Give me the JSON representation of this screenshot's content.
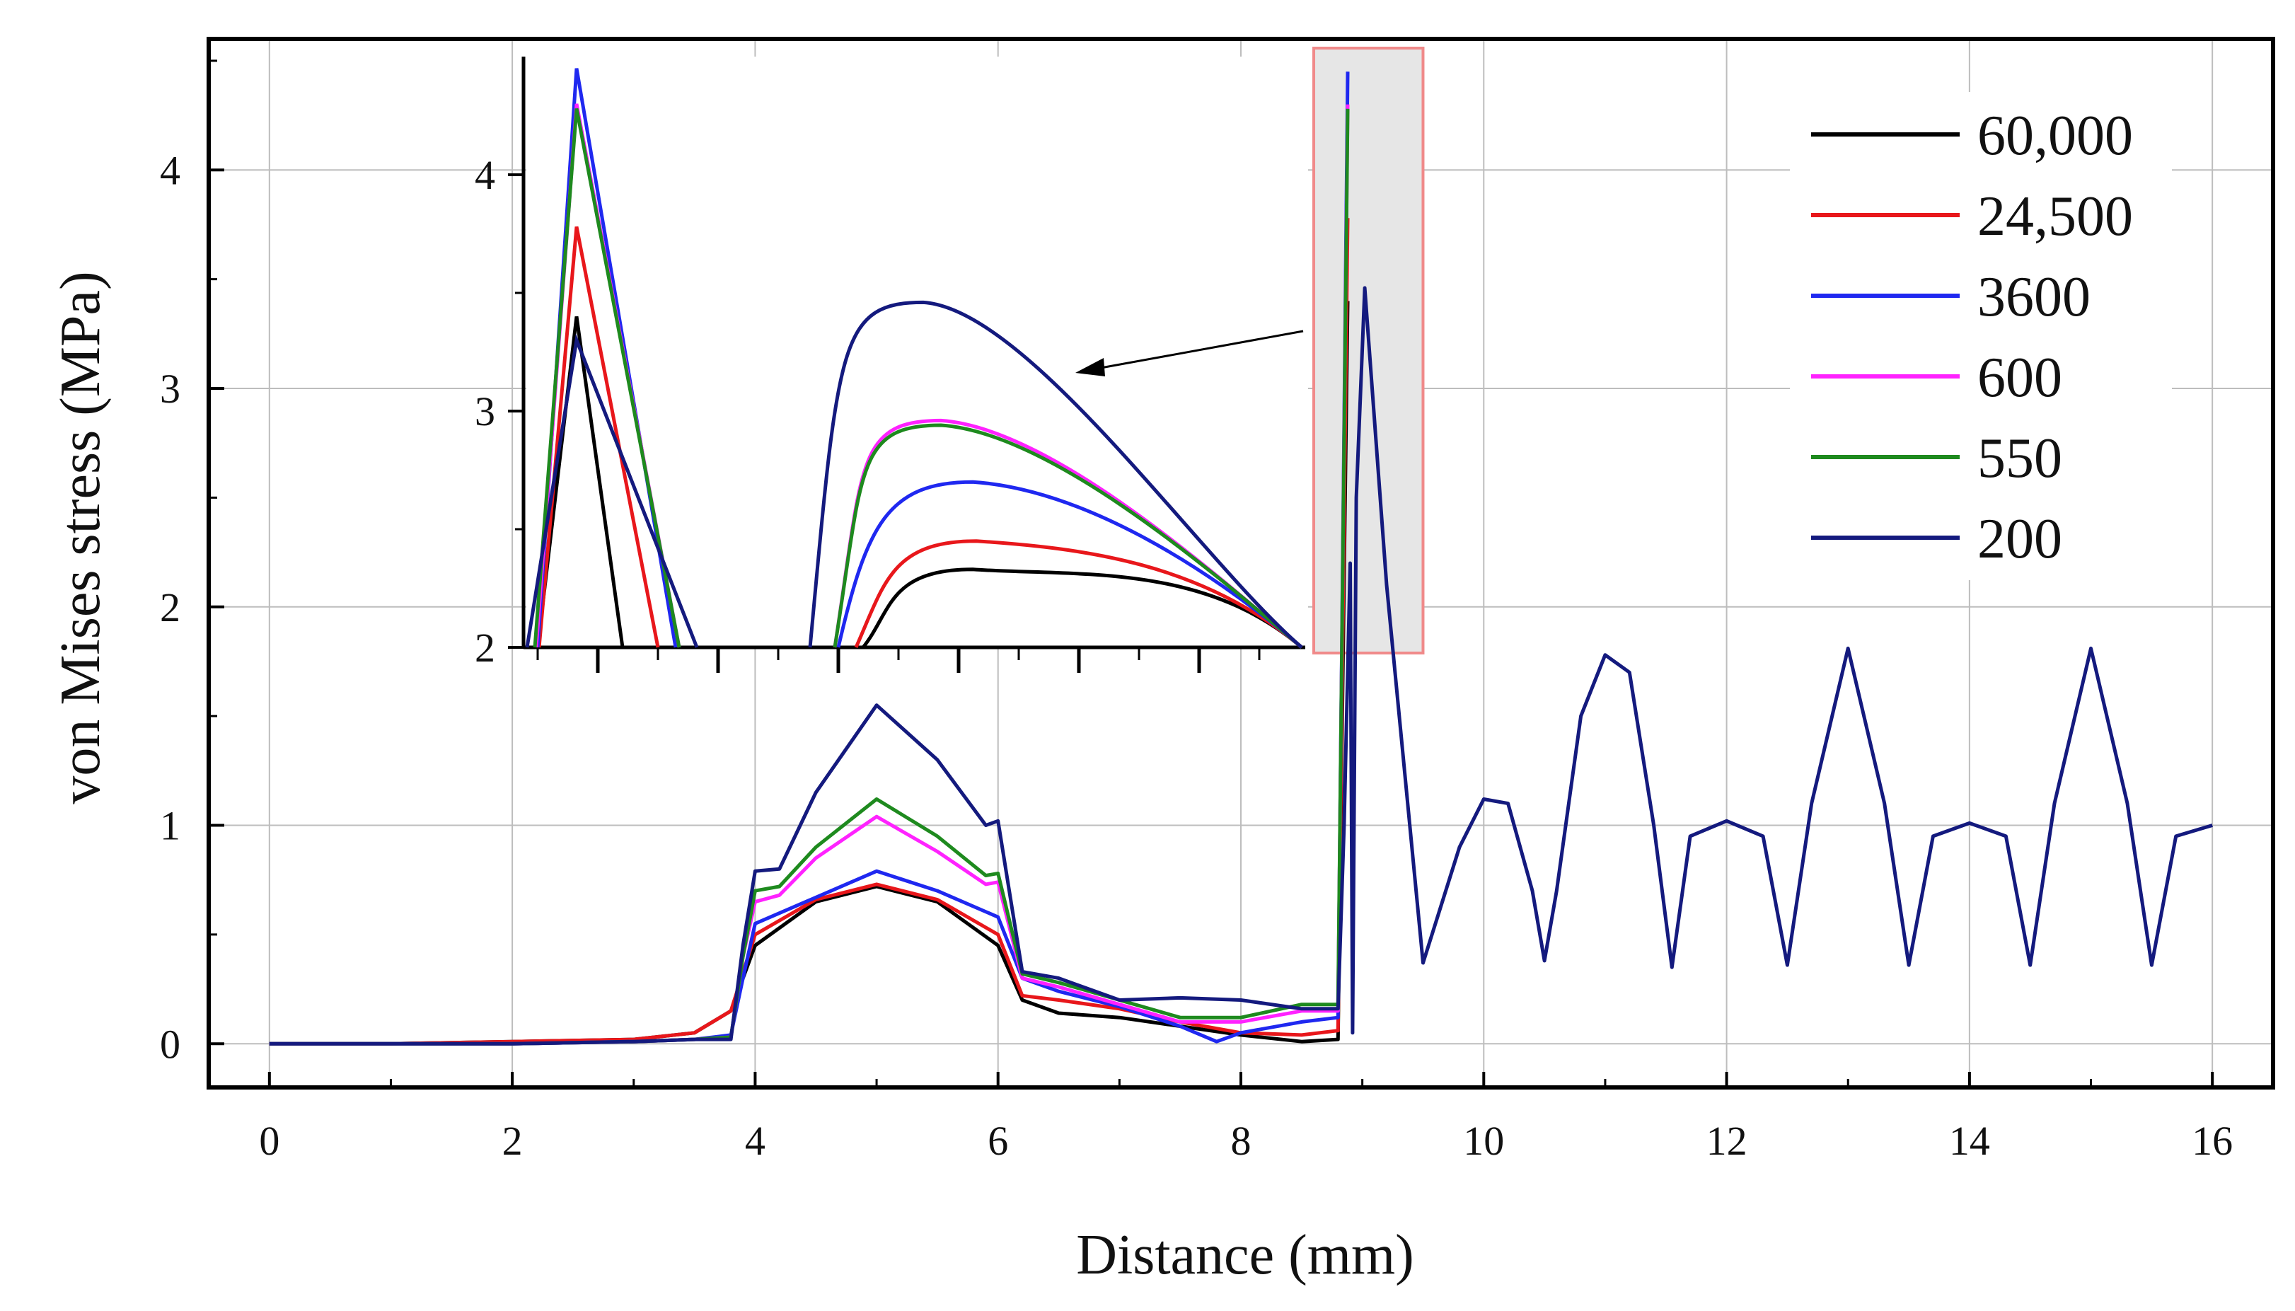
{
  "chart_data": {
    "type": "line",
    "title": "",
    "xlabel": "Distance (mm)",
    "ylabel": "von Mises stress (MPa)",
    "xlim": [
      -0.5,
      16.5
    ],
    "ylim": [
      -0.2,
      4.6
    ],
    "xticks": [
      "0",
      "2",
      "4",
      "6",
      "8",
      "10",
      "12",
      "14",
      "16"
    ],
    "yticks": [
      "0",
      "1",
      "2",
      "3",
      "4"
    ],
    "grid": true,
    "legend_position": "top-right",
    "series": [
      {
        "name": "60,000",
        "color": "#000000",
        "x": [
          0,
          1,
          2,
          3,
          3.5,
          3.8,
          4,
          4.5,
          5,
          5.5,
          6,
          6.2,
          6.5,
          7,
          7.5,
          8,
          8.5,
          8.8,
          8.88
        ],
        "y": [
          0,
          0,
          0.01,
          0.02,
          0.05,
          0.15,
          0.45,
          0.65,
          0.72,
          0.65,
          0.45,
          0.2,
          0.14,
          0.12,
          0.08,
          0.04,
          0.01,
          0.02,
          3.4
        ]
      },
      {
        "name": "24,500",
        "color": "#e8171b",
        "x": [
          0,
          1,
          2,
          3,
          3.5,
          3.8,
          4,
          4.5,
          5,
          5.5,
          6,
          6.2,
          6.5,
          7,
          7.5,
          8,
          8.5,
          8.8,
          8.88
        ],
        "y": [
          0,
          0,
          0.01,
          0.02,
          0.05,
          0.15,
          0.5,
          0.66,
          0.73,
          0.66,
          0.5,
          0.22,
          0.2,
          0.16,
          0.1,
          0.05,
          0.04,
          0.06,
          3.78
        ]
      },
      {
        "name": "3600",
        "color": "#1f28f0",
        "x": [
          0,
          1,
          2,
          3,
          3.5,
          3.8,
          3.9,
          4,
          4.5,
          5,
          5.5,
          6,
          6.2,
          6.5,
          7,
          7.5,
          7.8,
          8,
          8.5,
          8.8,
          8.88
        ],
        "y": [
          0,
          0,
          0,
          0.01,
          0.02,
          0.04,
          0.3,
          0.55,
          0.67,
          0.79,
          0.7,
          0.58,
          0.3,
          0.24,
          0.17,
          0.08,
          0.01,
          0.05,
          0.1,
          0.12,
          4.45
        ]
      },
      {
        "name": "600",
        "color": "#ff22ff",
        "x": [
          0,
          1,
          2,
          3,
          3.5,
          3.8,
          3.9,
          4,
          4.2,
          4.5,
          5,
          5.5,
          5.9,
          6,
          6.2,
          6.5,
          7,
          7.5,
          8,
          8.5,
          8.8,
          8.88
        ],
        "y": [
          0,
          0,
          0,
          0.01,
          0.02,
          0.03,
          0.4,
          0.65,
          0.68,
          0.85,
          1.04,
          0.88,
          0.73,
          0.74,
          0.3,
          0.26,
          0.18,
          0.1,
          0.1,
          0.15,
          0.15,
          4.3
        ]
      },
      {
        "name": "550",
        "color": "#1e8a1e",
        "x": [
          0,
          1,
          2,
          3,
          3.5,
          3.8,
          3.9,
          4,
          4.2,
          4.5,
          5,
          5.5,
          5.9,
          6,
          6.2,
          6.5,
          7,
          7.5,
          8,
          8.5,
          8.8,
          8.88
        ],
        "y": [
          0,
          0,
          0,
          0.01,
          0.02,
          0.03,
          0.4,
          0.7,
          0.72,
          0.9,
          1.12,
          0.95,
          0.77,
          0.78,
          0.32,
          0.28,
          0.2,
          0.12,
          0.12,
          0.18,
          0.18,
          4.28
        ]
      },
      {
        "name": "200",
        "color": "#141a7e",
        "x": [
          0,
          1,
          2,
          3,
          3.5,
          3.8,
          3.9,
          4,
          4.2,
          4.5,
          5,
          5.5,
          5.9,
          6,
          6.2,
          6.5,
          7,
          7.5,
          8,
          8.5,
          8.8,
          8.85,
          8.9,
          8.92,
          8.95,
          9.02,
          9.2,
          9.5,
          9.8,
          10,
          10.2,
          10.4,
          10.5,
          10.6,
          10.8,
          11,
          11.2,
          11.4,
          11.55,
          11.7,
          12,
          12.3,
          12.5,
          12.7,
          13,
          13.3,
          13.5,
          13.7,
          14,
          14.3,
          14.5,
          14.7,
          15,
          15.3,
          15.5,
          15.7,
          16
        ],
        "y": [
          0,
          0,
          0,
          0.01,
          0.02,
          0.02,
          0.45,
          0.79,
          0.8,
          1.15,
          1.55,
          1.3,
          1.0,
          1.02,
          0.33,
          0.3,
          0.2,
          0.21,
          0.2,
          0.16,
          0.16,
          1.0,
          2.2,
          0.05,
          2.5,
          3.46,
          2.1,
          0.37,
          0.9,
          1.12,
          1.1,
          0.7,
          0.38,
          0.7,
          1.5,
          1.78,
          1.7,
          1.0,
          0.35,
          0.95,
          1.02,
          0.95,
          0.36,
          1.1,
          1.81,
          1.1,
          0.36,
          0.95,
          1.01,
          0.95,
          0.36,
          1.1,
          1.81,
          1.1,
          0.36,
          0.95,
          1.0
        ]
      }
    ],
    "inset": {
      "yticks": [
        "2",
        "3",
        "4"
      ],
      "ylim": [
        2.0,
        4.5
      ],
      "description_ref": "zoomed region 8.85-9.5 mm",
      "series_peaks": [
        {
          "name": "60,000",
          "first_peak": 3.4,
          "second_peak": 2.33
        },
        {
          "name": "24,500",
          "first_peak": 3.78,
          "second_peak": 2.45
        },
        {
          "name": "3600",
          "first_peak": 4.45,
          "second_peak": 2.7
        },
        {
          "name": "600",
          "first_peak": 4.3,
          "second_peak": 2.96
        },
        {
          "name": "550",
          "first_peak": 4.28,
          "second_peak": 2.94
        },
        {
          "name": "200",
          "first_peak": 3.3,
          "second_peak": 3.46
        }
      ]
    }
  }
}
